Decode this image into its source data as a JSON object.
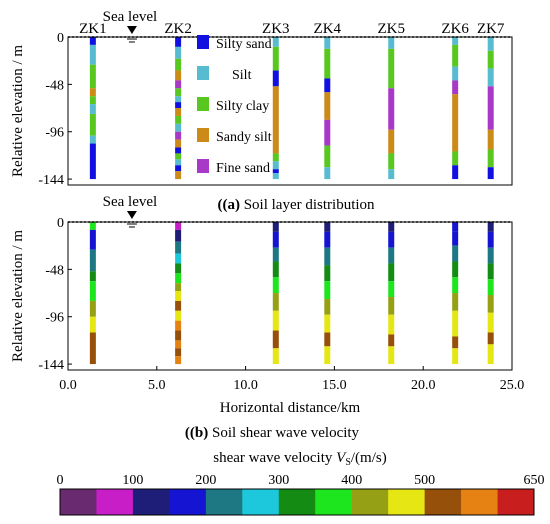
{
  "chart_data": [
    {
      "type": "heatmap",
      "panel_label": "(a)",
      "title": "Soil layer distribution",
      "ylabel": "Relative elevation / m",
      "yticks": [
        "0",
        "-48",
        "-96",
        "-144"
      ],
      "ylim": [
        -150,
        0
      ],
      "xlim": [
        0,
        25
      ],
      "sea_level_label": "Sea level",
      "sea_level_x_km": 3.6,
      "boreholes": [
        {
          "name": "ZK1",
          "x_km": 1.4,
          "layers": [
            {
              "top": 0,
              "bottom": -8,
              "class": "Silty sand"
            },
            {
              "top": -8,
              "bottom": -28,
              "class": "Silt"
            },
            {
              "top": -28,
              "bottom": -52,
              "class": "Silty clay"
            },
            {
              "top": -52,
              "bottom": -60,
              "class": "Sandy silt"
            },
            {
              "top": -60,
              "bottom": -68,
              "class": "Silty clay"
            },
            {
              "top": -68,
              "bottom": -78,
              "class": "Silt"
            },
            {
              "top": -78,
              "bottom": -100,
              "class": "Silty clay"
            },
            {
              "top": -100,
              "bottom": -108,
              "class": "Silt"
            },
            {
              "top": -108,
              "bottom": -144,
              "class": "Silty sand"
            }
          ]
        },
        {
          "name": "ZK2",
          "x_km": 6.2,
          "layers": [
            {
              "top": 0,
              "bottom": -10,
              "class": "Silty sand"
            },
            {
              "top": -10,
              "bottom": -22,
              "class": "Silt"
            },
            {
              "top": -22,
              "bottom": -34,
              "class": "Silty clay"
            },
            {
              "top": -34,
              "bottom": -44,
              "class": "Sandy silt"
            },
            {
              "top": -44,
              "bottom": -52,
              "class": "Fine sand"
            },
            {
              "top": -52,
              "bottom": -60,
              "class": "Silty clay"
            },
            {
              "top": -60,
              "bottom": -66,
              "class": "Silt"
            },
            {
              "top": -66,
              "bottom": -72,
              "class": "Silty sand"
            },
            {
              "top": -72,
              "bottom": -80,
              "class": "Sandy silt"
            },
            {
              "top": -80,
              "bottom": -88,
              "class": "Silty clay"
            },
            {
              "top": -88,
              "bottom": -96,
              "class": "Silt"
            },
            {
              "top": -96,
              "bottom": -104,
              "class": "Fine sand"
            },
            {
              "top": -104,
              "bottom": -112,
              "class": "Sandy silt"
            },
            {
              "top": -112,
              "bottom": -118,
              "class": "Silty sand"
            },
            {
              "top": -118,
              "bottom": -124,
              "class": "Silty clay"
            },
            {
              "top": -124,
              "bottom": -130,
              "class": "Silt"
            },
            {
              "top": -130,
              "bottom": -136,
              "class": "Silty sand"
            },
            {
              "top": -136,
              "bottom": -144,
              "class": "Sandy silt"
            }
          ]
        },
        {
          "name": "ZK3",
          "x_km": 11.7,
          "layers": [
            {
              "top": 0,
              "bottom": -10,
              "class": "Silt"
            },
            {
              "top": -10,
              "bottom": -34,
              "class": "Silty clay"
            },
            {
              "top": -34,
              "bottom": -50,
              "class": "Silty sand"
            },
            {
              "top": -50,
              "bottom": -118,
              "class": "Sandy silt"
            },
            {
              "top": -118,
              "bottom": -126,
              "class": "Silty clay"
            },
            {
              "top": -126,
              "bottom": -134,
              "class": "Silt"
            },
            {
              "top": -134,
              "bottom": -138,
              "class": "Silty sand"
            },
            {
              "top": -138,
              "bottom": -144,
              "class": "Silt"
            }
          ]
        },
        {
          "name": "ZK4",
          "x_km": 14.6,
          "layers": [
            {
              "top": 0,
              "bottom": -12,
              "class": "Silt"
            },
            {
              "top": -12,
              "bottom": -42,
              "class": "Silty clay"
            },
            {
              "top": -42,
              "bottom": -56,
              "class": "Silty sand"
            },
            {
              "top": -56,
              "bottom": -84,
              "class": "Sandy silt"
            },
            {
              "top": -84,
              "bottom": -110,
              "class": "Fine sand"
            },
            {
              "top": -110,
              "bottom": -132,
              "class": "Silty clay"
            },
            {
              "top": -132,
              "bottom": -144,
              "class": "Silt"
            }
          ]
        },
        {
          "name": "ZK5",
          "x_km": 18.2,
          "layers": [
            {
              "top": 0,
              "bottom": -12,
              "class": "Silt"
            },
            {
              "top": -12,
              "bottom": -52,
              "class": "Silty clay"
            },
            {
              "top": -52,
              "bottom": -94,
              "class": "Fine sand"
            },
            {
              "top": -94,
              "bottom": -118,
              "class": "Sandy silt"
            },
            {
              "top": -118,
              "bottom": -134,
              "class": "Silty clay"
            },
            {
              "top": -134,
              "bottom": -144,
              "class": "Silt"
            }
          ]
        },
        {
          "name": "ZK6",
          "x_km": 21.8,
          "layers": [
            {
              "top": 0,
              "bottom": -8,
              "class": "Silt"
            },
            {
              "top": -8,
              "bottom": -30,
              "class": "Silty clay"
            },
            {
              "top": -30,
              "bottom": -44,
              "class": "Silt"
            },
            {
              "top": -44,
              "bottom": -58,
              "class": "Fine sand"
            },
            {
              "top": -58,
              "bottom": -116,
              "class": "Sandy silt"
            },
            {
              "top": -116,
              "bottom": -130,
              "class": "Silty clay"
            },
            {
              "top": -130,
              "bottom": -144,
              "class": "Silty sand"
            }
          ]
        },
        {
          "name": "ZK7",
          "x_km": 23.8,
          "layers": [
            {
              "top": 0,
              "bottom": -14,
              "class": "Silt"
            },
            {
              "top": -14,
              "bottom": -32,
              "class": "Silty clay"
            },
            {
              "top": -32,
              "bottom": -50,
              "class": "Silt"
            },
            {
              "top": -50,
              "bottom": -94,
              "class": "Fine sand"
            },
            {
              "top": -94,
              "bottom": -114,
              "class": "Sandy silt"
            },
            {
              "top": -114,
              "bottom": -132,
              "class": "Silty clay"
            },
            {
              "top": -132,
              "bottom": -144,
              "class": "Silty sand"
            }
          ]
        }
      ],
      "legend_placement": "inside, between ZK2 and ZK3",
      "legend": [
        {
          "label": "Silty sand",
          "color": "#1010e0"
        },
        {
          "label": "Silt",
          "color": "#58bcd0"
        },
        {
          "label": "Silty clay",
          "color": "#58c820"
        },
        {
          "label": "Sandy silt",
          "color": "#cc8a18"
        },
        {
          "label": "Fine sand",
          "color": "#a838c8"
        }
      ]
    },
    {
      "type": "heatmap",
      "panel_label": "(b)",
      "title": "Soil shear wave velocity",
      "ylabel": "Relative elevation / m",
      "xlabel": "Horizontal distance/km",
      "yticks": [
        "0",
        "-48",
        "-96",
        "-144"
      ],
      "xticks": [
        "0.0",
        "5.0",
        "10.0",
        "15.0",
        "20.0",
        "25.0"
      ],
      "xlim": [
        0,
        25
      ],
      "ylim": [
        -150,
        0
      ],
      "sea_level_label": "Sea level",
      "sea_level_x_km": 3.6,
      "boreholes": [
        {
          "name": "ZK1",
          "x_km": 1.4,
          "vs": [
            {
              "top": 0,
              "bottom": -8,
              "value": 380
            },
            {
              "top": -8,
              "bottom": -28,
              "value": 150
            },
            {
              "top": -28,
              "bottom": -50,
              "value": 230
            },
            {
              "top": -50,
              "bottom": -60,
              "value": 310
            },
            {
              "top": -60,
              "bottom": -80,
              "value": 360
            },
            {
              "top": -80,
              "bottom": -96,
              "value": 420
            },
            {
              "top": -96,
              "bottom": -112,
              "value": 470
            },
            {
              "top": -112,
              "bottom": -144,
              "value": 530
            }
          ]
        },
        {
          "name": "ZK2",
          "x_km": 6.2,
          "vs": [
            {
              "top": 0,
              "bottom": -8,
              "value": 60
            },
            {
              "top": -8,
              "bottom": -20,
              "value": 140
            },
            {
              "top": -20,
              "bottom": -32,
              "value": 230
            },
            {
              "top": -32,
              "bottom": -42,
              "value": 290
            },
            {
              "top": -42,
              "bottom": -52,
              "value": 330
            },
            {
              "top": -52,
              "bottom": -62,
              "value": 380
            },
            {
              "top": -62,
              "bottom": -70,
              "value": 420
            },
            {
              "top": -70,
              "bottom": -80,
              "value": 460
            },
            {
              "top": -80,
              "bottom": -90,
              "value": 530
            },
            {
              "top": -90,
              "bottom": -100,
              "value": 480
            },
            {
              "top": -100,
              "bottom": -110,
              "value": 560
            },
            {
              "top": -110,
              "bottom": -120,
              "value": 520
            },
            {
              "top": -120,
              "bottom": -128,
              "value": 590
            },
            {
              "top": -128,
              "bottom": -136,
              "value": 540
            },
            {
              "top": -136,
              "bottom": -144,
              "value": 580
            }
          ]
        },
        {
          "name": "ZK3",
          "x_km": 11.7,
          "vs": [
            {
              "top": 0,
              "bottom": -10,
              "value": 140
            },
            {
              "top": -10,
              "bottom": -26,
              "value": 180
            },
            {
              "top": -26,
              "bottom": -40,
              "value": 230
            },
            {
              "top": -40,
              "bottom": -56,
              "value": 300
            },
            {
              "top": -56,
              "bottom": -72,
              "value": 360
            },
            {
              "top": -72,
              "bottom": -90,
              "value": 420
            },
            {
              "top": -90,
              "bottom": -110,
              "value": 470
            },
            {
              "top": -110,
              "bottom": -128,
              "value": 530
            },
            {
              "top": -128,
              "bottom": -144,
              "value": 480
            }
          ]
        },
        {
          "name": "ZK4",
          "x_km": 14.6,
          "vs": [
            {
              "top": 0,
              "bottom": -10,
              "value": 140
            },
            {
              "top": -10,
              "bottom": -26,
              "value": 180
            },
            {
              "top": -26,
              "bottom": -44,
              "value": 240
            },
            {
              "top": -44,
              "bottom": -60,
              "value": 310
            },
            {
              "top": -60,
              "bottom": -78,
              "value": 370
            },
            {
              "top": -78,
              "bottom": -94,
              "value": 430
            },
            {
              "top": -94,
              "bottom": -112,
              "value": 470
            },
            {
              "top": -112,
              "bottom": -126,
              "value": 530
            },
            {
              "top": -126,
              "bottom": -144,
              "value": 480
            }
          ]
        },
        {
          "name": "ZK5",
          "x_km": 18.2,
          "vs": [
            {
              "top": 0,
              "bottom": -10,
              "value": 140
            },
            {
              "top": -10,
              "bottom": -26,
              "value": 190
            },
            {
              "top": -26,
              "bottom": -42,
              "value": 240
            },
            {
              "top": -42,
              "bottom": -60,
              "value": 310
            },
            {
              "top": -60,
              "bottom": -76,
              "value": 370
            },
            {
              "top": -76,
              "bottom": -94,
              "value": 440
            },
            {
              "top": -94,
              "bottom": -114,
              "value": 480
            },
            {
              "top": -114,
              "bottom": -126,
              "value": 530
            },
            {
              "top": -126,
              "bottom": -144,
              "value": 470
            }
          ]
        },
        {
          "name": "ZK6",
          "x_km": 21.8,
          "vs": [
            {
              "top": 0,
              "bottom": -10,
              "value": 150
            },
            {
              "top": -10,
              "bottom": -24,
              "value": 190
            },
            {
              "top": -24,
              "bottom": -40,
              "value": 240
            },
            {
              "top": -40,
              "bottom": -56,
              "value": 320
            },
            {
              "top": -56,
              "bottom": -72,
              "value": 360
            },
            {
              "top": -72,
              "bottom": -90,
              "value": 430
            },
            {
              "top": -90,
              "bottom": -116,
              "value": 480
            },
            {
              "top": -116,
              "bottom": -128,
              "value": 530
            },
            {
              "top": -128,
              "bottom": -144,
              "value": 470
            }
          ]
        },
        {
          "name": "ZK7",
          "x_km": 23.8,
          "vs": [
            {
              "top": 0,
              "bottom": -10,
              "value": 140
            },
            {
              "top": -10,
              "bottom": -26,
              "value": 190
            },
            {
              "top": -26,
              "bottom": -42,
              "value": 240
            },
            {
              "top": -42,
              "bottom": -58,
              "value": 310
            },
            {
              "top": -58,
              "bottom": -74,
              "value": 370
            },
            {
              "top": -74,
              "bottom": -92,
              "value": 430
            },
            {
              "top": -92,
              "bottom": -112,
              "value": 480
            },
            {
              "top": -112,
              "bottom": -124,
              "value": 530
            },
            {
              "top": -124,
              "bottom": -144,
              "value": 470
            }
          ]
        }
      ],
      "colorbar": {
        "label_prefix": "shear wave velocity ",
        "label_var": "V",
        "label_sub": "S",
        "label_unit": "/(m/s)",
        "ticks": [
          "0",
          "100",
          "200",
          "300",
          "400",
          "500",
          "650"
        ],
        "tick_values": [
          0,
          100,
          200,
          300,
          400,
          500,
          650
        ],
        "range": [
          0,
          650
        ],
        "bins": [
          {
            "from": 0,
            "to": 50,
            "color": "#6a2a70"
          },
          {
            "from": 50,
            "to": 100,
            "color": "#c81ec8"
          },
          {
            "from": 100,
            "to": 150,
            "color": "#1e1e78"
          },
          {
            "from": 150,
            "to": 200,
            "color": "#1414d2"
          },
          {
            "from": 200,
            "to": 250,
            "color": "#1e7884"
          },
          {
            "from": 250,
            "to": 300,
            "color": "#1ec8dc"
          },
          {
            "from": 300,
            "to": 350,
            "color": "#148c14"
          },
          {
            "from": 350,
            "to": 400,
            "color": "#1ee61e"
          },
          {
            "from": 400,
            "to": 450,
            "color": "#96a014"
          },
          {
            "from": 450,
            "to": 500,
            "color": "#e6e614"
          },
          {
            "from": 500,
            "to": 550,
            "color": "#96500a"
          },
          {
            "from": 550,
            "to": 600,
            "color": "#e68214"
          },
          {
            "from": 600,
            "to": 650,
            "color": "#c81e1e"
          }
        ]
      }
    }
  ]
}
